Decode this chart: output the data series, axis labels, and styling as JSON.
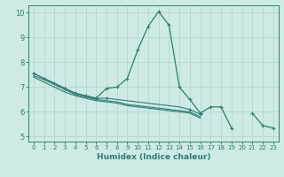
{
  "xlabel": "Humidex (Indice chaleur)",
  "xlim": [
    -0.5,
    23.5
  ],
  "ylim": [
    4.8,
    10.3
  ],
  "yticks": [
    5,
    6,
    7,
    8,
    9,
    10
  ],
  "xticks": [
    0,
    1,
    2,
    3,
    4,
    5,
    6,
    7,
    8,
    9,
    10,
    11,
    12,
    13,
    14,
    15,
    16,
    17,
    18,
    19,
    20,
    21,
    22,
    23
  ],
  "bg_color": "#ceeae6",
  "line_color": "#2e7d6e",
  "grid_color": "#aed4cf",
  "series": [
    [
      7.55,
      7.35,
      7.15,
      6.95,
      6.75,
      6.65,
      6.55,
      6.95,
      7.0,
      7.35,
      8.5,
      9.45,
      10.05,
      9.5,
      7.0,
      6.5,
      5.95,
      6.2,
      6.2,
      5.35,
      null,
      5.95,
      5.45,
      5.35
    ],
    [
      7.55,
      7.35,
      7.15,
      6.95,
      6.75,
      6.65,
      6.55,
      6.55,
      6.5,
      6.45,
      6.4,
      6.35,
      6.3,
      6.25,
      6.2,
      6.1,
      5.9,
      null,
      null,
      null,
      null,
      null,
      null,
      null
    ],
    [
      7.45,
      7.3,
      7.1,
      6.9,
      6.7,
      6.6,
      6.5,
      6.45,
      6.4,
      6.3,
      6.25,
      6.2,
      6.15,
      6.1,
      6.05,
      6.0,
      5.8,
      null,
      null,
      null,
      null,
      null,
      null,
      null
    ],
    [
      7.4,
      7.2,
      7.0,
      6.8,
      6.65,
      6.55,
      6.45,
      6.4,
      6.35,
      6.25,
      6.2,
      6.15,
      6.1,
      6.05,
      6.0,
      5.95,
      5.75,
      null,
      null,
      null,
      null,
      null,
      null,
      null
    ]
  ],
  "markers_series": [
    [
      0,
      1,
      3,
      5,
      6,
      7,
      10,
      11,
      12,
      13,
      14,
      15,
      16,
      17,
      18,
      19,
      21,
      22,
      23
    ],
    [
      0,
      3,
      6,
      7,
      15,
      16
    ],
    [],
    []
  ]
}
